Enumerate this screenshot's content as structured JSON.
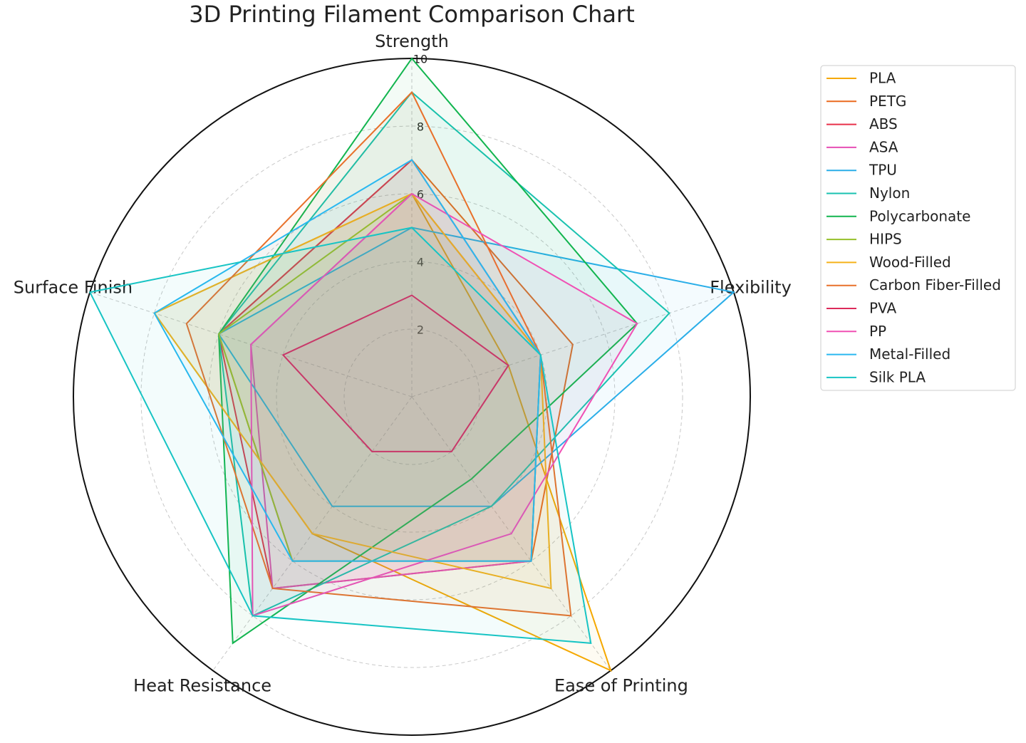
{
  "chart_data": {
    "type": "radar",
    "title": "3D Printing Filament Comparison Chart",
    "categories": [
      "Strength",
      "Flexibility",
      "Ease of Printing",
      "Heat Resistance",
      "Surface Finish"
    ],
    "rlim": [
      0,
      10
    ],
    "rticks": [
      2,
      4,
      6,
      8,
      10
    ],
    "grid": true,
    "legend": "right",
    "series": [
      {
        "name": "PLA",
        "color": "#f5a800",
        "values": [
          6,
          3,
          10,
          5,
          8
        ]
      },
      {
        "name": "PETG",
        "color": "#ea6a1f",
        "values": [
          7,
          5,
          6,
          6,
          6
        ]
      },
      {
        "name": "ABS",
        "color": "#e8304a",
        "values": [
          7,
          4,
          6,
          7,
          6
        ]
      },
      {
        "name": "ASA",
        "color": "#e64fb4",
        "values": [
          6,
          4,
          6,
          7,
          5
        ]
      },
      {
        "name": "TPU",
        "color": "#2aaee8",
        "values": [
          5,
          10,
          4,
          4,
          6
        ]
      },
      {
        "name": "Nylon",
        "color": "#19c2b0",
        "values": [
          9,
          8,
          4,
          8,
          6
        ]
      },
      {
        "name": "Polycarbonate",
        "color": "#12b54f",
        "values": [
          10,
          7,
          3,
          9,
          6
        ]
      },
      {
        "name": "HIPS",
        "color": "#96c02a",
        "values": [
          6,
          4,
          6,
          6,
          6
        ]
      },
      {
        "name": "Wood-Filled",
        "color": "#f5b21a",
        "values": [
          6,
          4,
          7,
          5,
          8
        ]
      },
      {
        "name": "Carbon Fiber-Filled",
        "color": "#e8702a",
        "values": [
          9,
          4,
          8,
          7,
          7
        ]
      },
      {
        "name": "PVA",
        "color": "#dc2a5a",
        "values": [
          3,
          3,
          2,
          2,
          4
        ]
      },
      {
        "name": "PP",
        "color": "#f050b4",
        "values": [
          6,
          7,
          5,
          8,
          5
        ]
      },
      {
        "name": "Metal-Filled",
        "color": "#2ab8f0",
        "values": [
          7,
          4,
          6,
          6,
          8
        ]
      },
      {
        "name": "Silk PLA",
        "color": "#17c4c4",
        "values": [
          5,
          4,
          9,
          8,
          10
        ]
      }
    ]
  }
}
